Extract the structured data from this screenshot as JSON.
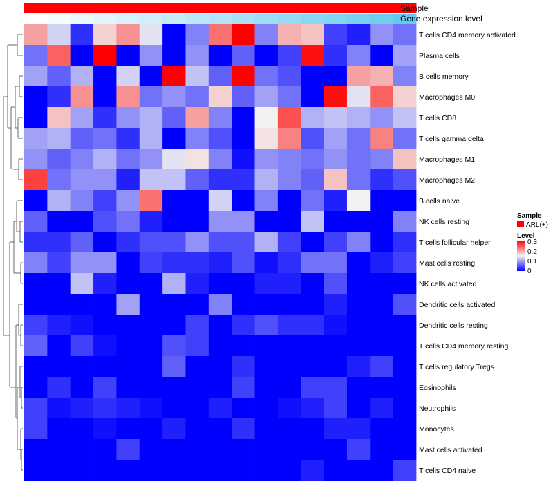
{
  "chart_data": {
    "type": "heatmap",
    "annotations": {
      "sample_label": "Sample",
      "gene_expression_label": "Gene expression level",
      "sample_color": "#ff0000",
      "gene_expression_values": [
        0.0,
        0.06,
        0.12,
        0.18,
        0.24,
        0.3,
        0.36,
        0.42,
        0.48,
        0.54,
        0.6,
        0.66,
        0.72,
        0.78,
        0.84,
        0.9,
        0.96,
        1.0
      ]
    },
    "rows": [
      "T cells CD4 memory activated",
      "Plasma cells",
      "B cells memory",
      "Macrophages M0",
      "T cells CD8",
      "T cells gamma delta",
      "Macrophages M1",
      "Macrophages M2",
      "B cells naive",
      "NK cells resting",
      "T cells follicular helper",
      "Mast cells resting",
      "NK cells activated",
      "Dendritic cells activated",
      "Dendritic cells resting",
      "T cells CD4 memory resting",
      "T cells regulatory  Tregs",
      "Eosinophils",
      "Neutrophils",
      "Monocytes",
      "Mast cells activated",
      "T cells CD4 naive"
    ],
    "num_columns": 17,
    "values": [
      [
        0.2,
        0.13,
        0.03,
        0.17,
        0.21,
        0.14,
        0.0,
        0.08,
        0.23,
        0.3,
        0.08,
        0.19,
        0.18,
        0.04,
        0.02,
        0.09,
        0.07
      ],
      [
        0.07,
        0.24,
        0.0,
        0.3,
        0.0,
        0.09,
        0.0,
        0.09,
        0.0,
        0.06,
        0.0,
        0.04,
        0.29,
        0.03,
        0.08,
        0.0,
        0.1
      ],
      [
        0.1,
        0.06,
        0.11,
        0.0,
        0.13,
        0.0,
        0.3,
        0.12,
        0.06,
        0.3,
        0.07,
        0.05,
        0.0,
        0.0,
        0.2,
        0.19,
        0.08
      ],
      [
        0.0,
        0.03,
        0.21,
        0.0,
        0.21,
        0.07,
        0.09,
        0.07,
        0.17,
        0.06,
        0.1,
        0.07,
        0.0,
        0.29,
        0.14,
        0.24,
        0.17
      ],
      [
        0.0,
        0.18,
        0.1,
        0.03,
        0.09,
        0.11,
        0.06,
        0.2,
        0.08,
        0.0,
        0.15,
        0.25,
        0.11,
        0.12,
        0.11,
        0.09,
        0.12
      ],
      [
        0.1,
        0.11,
        0.06,
        0.07,
        0.03,
        0.11,
        0.0,
        0.08,
        0.05,
        0.0,
        0.16,
        0.22,
        0.05,
        0.1,
        0.07,
        0.22,
        0.07
      ],
      [
        0.09,
        0.06,
        0.08,
        0.11,
        0.07,
        0.09,
        0.14,
        0.16,
        0.08,
        0.01,
        0.09,
        0.08,
        0.07,
        0.09,
        0.07,
        0.08,
        0.18
      ],
      [
        0.26,
        0.07,
        0.09,
        0.09,
        0.02,
        0.12,
        0.12,
        0.06,
        0.03,
        0.03,
        0.11,
        0.08,
        0.06,
        0.18,
        0.07,
        0.03,
        0.05
      ],
      [
        0.0,
        0.11,
        0.08,
        0.04,
        0.09,
        0.23,
        0.0,
        0.0,
        0.13,
        0.0,
        0.08,
        0.0,
        0.07,
        0.02,
        0.15,
        0.0,
        0.0
      ],
      [
        0.06,
        0.0,
        0.0,
        0.05,
        0.07,
        0.02,
        0.0,
        0.0,
        0.09,
        0.09,
        0.0,
        0.0,
        0.12,
        0.0,
        0.0,
        0.0,
        0.08
      ],
      [
        0.03,
        0.03,
        0.06,
        0.0,
        0.03,
        0.05,
        0.05,
        0.09,
        0.05,
        0.05,
        0.11,
        0.04,
        0.0,
        0.04,
        0.08,
        0.0,
        0.03
      ],
      [
        0.08,
        0.04,
        0.09,
        0.09,
        0.0,
        0.04,
        0.03,
        0.03,
        0.02,
        0.05,
        0.01,
        0.03,
        0.07,
        0.07,
        0.0,
        0.02,
        0.04
      ],
      [
        0.0,
        0.0,
        0.12,
        0.02,
        0.0,
        0.0,
        0.11,
        0.02,
        0.0,
        0.0,
        0.02,
        0.02,
        0.0,
        0.05,
        0.0,
        0.0,
        0.0
      ],
      [
        0.0,
        0.0,
        0.0,
        0.0,
        0.1,
        0.0,
        0.0,
        0.0,
        0.08,
        0.0,
        0.0,
        0.0,
        0.0,
        0.02,
        0.0,
        0.0,
        0.05
      ],
      [
        0.04,
        0.02,
        0.01,
        0.0,
        0.0,
        0.0,
        0.0,
        0.04,
        0.0,
        0.03,
        0.05,
        0.03,
        0.03,
        0.01,
        0.0,
        0.0,
        0.0
      ],
      [
        0.06,
        0.0,
        0.04,
        0.01,
        0.0,
        0.0,
        0.05,
        0.04,
        0.0,
        0.0,
        0.0,
        0.0,
        0.0,
        0.0,
        0.0,
        0.0,
        0.0
      ],
      [
        0.0,
        0.0,
        0.0,
        0.0,
        0.0,
        0.0,
        0.06,
        0.0,
        0.0,
        0.03,
        0.0,
        0.0,
        0.0,
        0.0,
        0.02,
        0.04,
        0.0
      ],
      [
        0.0,
        0.03,
        0.0,
        0.04,
        0.0,
        0.0,
        0.0,
        0.0,
        0.0,
        0.04,
        0.0,
        0.0,
        0.04,
        0.04,
        0.0,
        0.0,
        0.0
      ],
      [
        0.04,
        0.01,
        0.02,
        0.03,
        0.02,
        0.01,
        0.0,
        0.0,
        0.02,
        0.0,
        0.0,
        0.01,
        0.02,
        0.04,
        0.0,
        0.02,
        0.0
      ],
      [
        0.04,
        0.0,
        0.0,
        0.01,
        0.0,
        0.0,
        0.02,
        0.0,
        0.0,
        0.03,
        0.0,
        0.0,
        0.0,
        0.02,
        0.02,
        0.0,
        0.0
      ],
      [
        0.0,
        0.0,
        0.0,
        0.0,
        0.04,
        0.0,
        0.0,
        0.0,
        0.0,
        0.0,
        0.0,
        0.0,
        0.0,
        0.0,
        0.04,
        0.0,
        0.0
      ],
      [
        0.0,
        0.0,
        0.0,
        0.0,
        0.0,
        0.0,
        0.0,
        0.0,
        0.0,
        0.0,
        0.0,
        0.0,
        0.02,
        0.0,
        0.0,
        0.0,
        0.04
      ]
    ],
    "color_scale": {
      "min": 0,
      "max": 0.3,
      "low_color": "#0000ff",
      "mid_color": "#f2f2f2",
      "high_color": "#ff0000"
    },
    "legend": {
      "sample_title": "Sample",
      "sample_entry": "ARL(+)",
      "level_title": "Level",
      "level_ticks": [
        "0.3",
        "0.2",
        "0.1",
        "0"
      ]
    }
  }
}
